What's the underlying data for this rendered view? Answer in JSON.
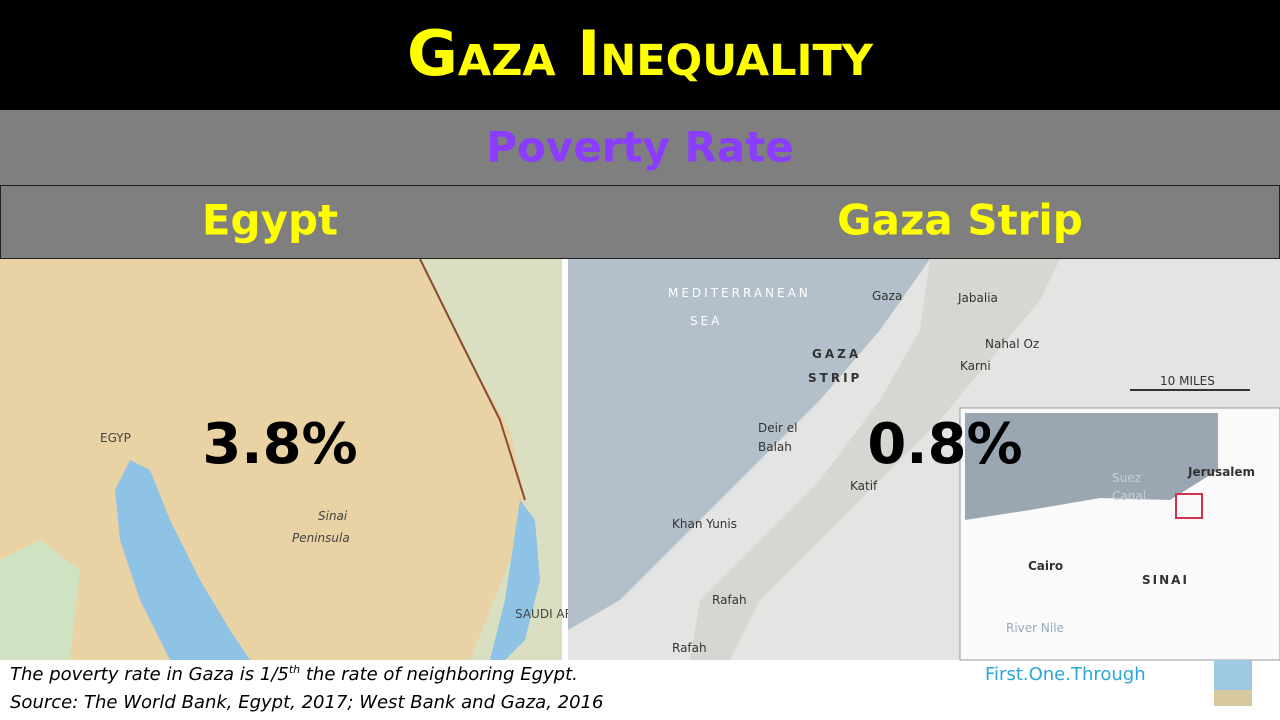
{
  "header": {
    "title": "Gaza Inequality",
    "subtitle": "Poverty Rate"
  },
  "columns": [
    {
      "label": "Egypt",
      "value": "3.8%"
    },
    {
      "label": "Gaza Strip",
      "value": "0.8%"
    }
  ],
  "maps": {
    "egypt": [
      "EGYP",
      "Sinai",
      "Peninsula",
      "SAUDI ARABIA"
    ],
    "gaza": [
      "MEDITERRANEAN",
      "SEA",
      "GAZA",
      "STRIP",
      "Gaza",
      "Jabalia",
      "Nahal Oz",
      "Karni",
      "10 MILES",
      "Deir el",
      "Balah",
      "Katif",
      "Khan Yunis",
      "Rafah",
      "Rafah",
      "Suez",
      "Canal",
      "Jerusalem",
      "Cairo",
      "SINAI",
      "River Nile"
    ]
  },
  "footer": {
    "note": [
      "The poverty rate in Gaza is 1/5",
      "th",
      " the rate of neighboring Egypt."
    ],
    "source": "Source: The World Bank, Egypt, 2017; West Bank and Gaza, 2016",
    "brand": "First.One.Through"
  }
}
